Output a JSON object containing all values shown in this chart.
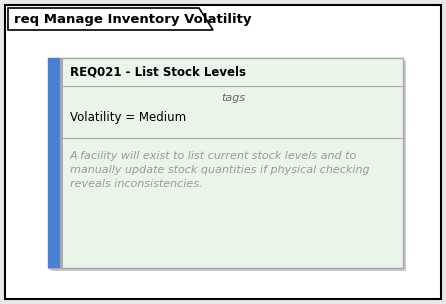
{
  "outer_bg": "#e8e8e8",
  "diagram_bg": "#ffffff",
  "diagram_border": "#000000",
  "tab_text": "req Manage Inventory Volatility",
  "tab_font_size": 9.5,
  "tab_bg": "#ffffff",
  "tab_border": "#000000",
  "card_bg": "#eaf5ea",
  "card_border": "#aaaaaa",
  "card_left_bar_color": "#4a7fd4",
  "card_left_bar_thin_color": "#aaaaaa",
  "card_title": "REQ021 - List Stock Levels",
  "card_title_font_size": 8.5,
  "card_title_color": "#000000",
  "card_tags_label": "tags",
  "card_tags_font_size": 8,
  "card_tags_color": "#666666",
  "card_attr_text": "Volatility = Medium",
  "card_attr_font_size": 8.5,
  "card_attr_color": "#000000",
  "card_notes_text": "A facility will exist to list current stock levels and to\nmanually update stock quantities if physical checking\nreveals inconsistencies.",
  "card_notes_font_size": 8,
  "card_notes_color": "#999999",
  "divider_color": "#aaaaaa"
}
